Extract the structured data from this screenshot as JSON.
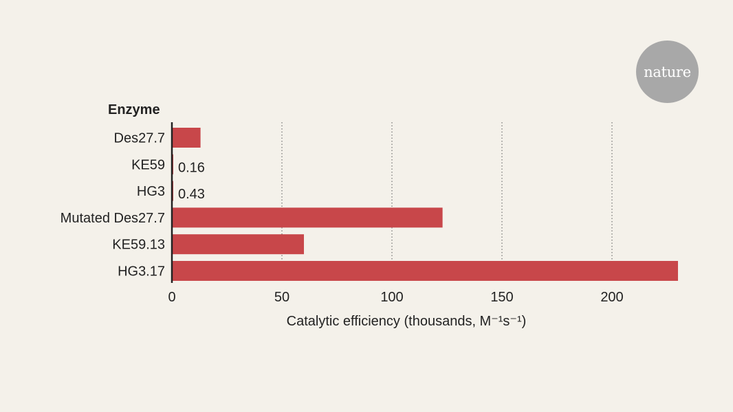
{
  "brand": {
    "logo_text": "nature",
    "logo_color": "#a8a8a8"
  },
  "chart_data": {
    "type": "bar",
    "orientation": "horizontal",
    "category_axis_title": "Enzyme",
    "categories": [
      "Des27.7",
      "KE59",
      "HG3",
      "Mutated Des27.7",
      "KE59.13",
      "HG3.17"
    ],
    "values": [
      13,
      0.16,
      0.43,
      123,
      60,
      230
    ],
    "data_labels": {
      "KE59": "0.16",
      "HG3": "0.43"
    },
    "xlabel": "Catalytic efficiency (thousands, M⁻¹s⁻¹)",
    "xlim": [
      0,
      230
    ],
    "xticks": [
      0,
      50,
      100,
      150,
      200
    ],
    "grid": "vertical dotted",
    "bar_color": "#c8474a"
  }
}
